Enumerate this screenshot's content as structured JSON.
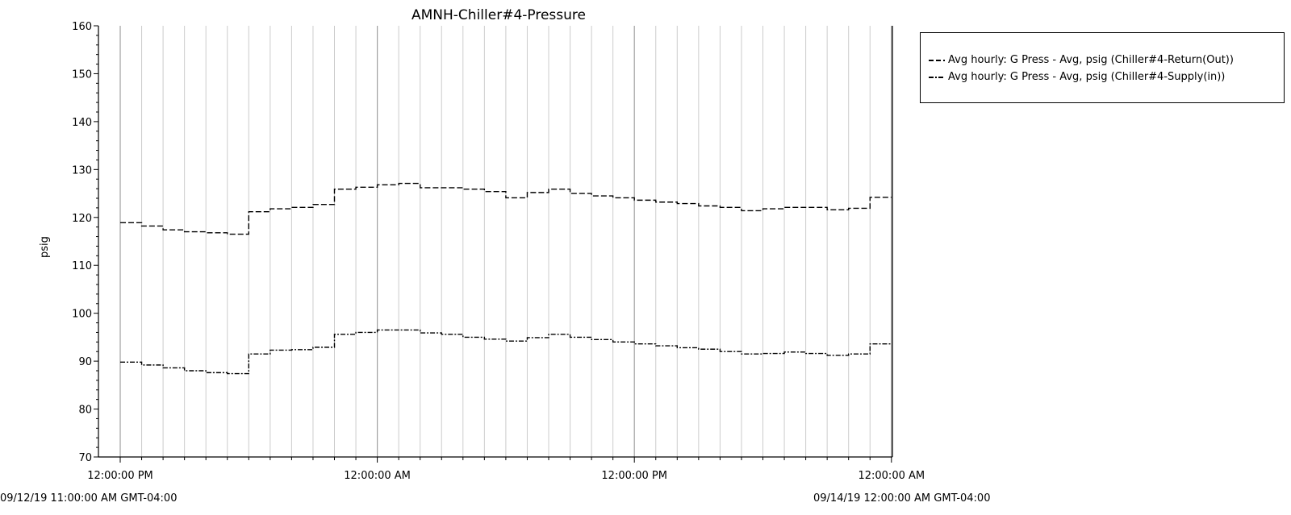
{
  "chart_data": {
    "type": "line",
    "title": "AMNH-Chiller#4-Pressure",
    "ylabel": "psig",
    "xlabel": "",
    "ylim": [
      70,
      160
    ],
    "y_ticks": [
      "70",
      "80",
      "90",
      "100",
      "110",
      "120",
      "130",
      "140",
      "150",
      "160"
    ],
    "x_tick_labels": [
      "12:00:00 PM",
      "12:00:00 AM",
      "12:00:00 PM",
      "12:00:00 AM"
    ],
    "range_start_label": "09/12/19 11:00:00 AM GMT-04:00",
    "range_end_label": "09/14/19 12:00:00 AM GMT-04:00",
    "grid": "vertical",
    "step": true,
    "hours": [
      "2019-09-12 12:00",
      "2019-09-12 13:00",
      "2019-09-12 14:00",
      "2019-09-12 15:00",
      "2019-09-12 16:00",
      "2019-09-12 17:00",
      "2019-09-12 18:00",
      "2019-09-12 19:00",
      "2019-09-12 20:00",
      "2019-09-12 21:00",
      "2019-09-12 22:00",
      "2019-09-12 23:00",
      "2019-09-13 00:00",
      "2019-09-13 01:00",
      "2019-09-13 02:00",
      "2019-09-13 03:00",
      "2019-09-13 04:00",
      "2019-09-13 05:00",
      "2019-09-13 06:00",
      "2019-09-13 07:00",
      "2019-09-13 08:00",
      "2019-09-13 09:00",
      "2019-09-13 10:00",
      "2019-09-13 11:00",
      "2019-09-13 12:00",
      "2019-09-13 13:00",
      "2019-09-13 14:00",
      "2019-09-13 15:00",
      "2019-09-13 16:00",
      "2019-09-13 17:00",
      "2019-09-13 18:00",
      "2019-09-13 19:00",
      "2019-09-13 20:00",
      "2019-09-13 21:00",
      "2019-09-13 22:00",
      "2019-09-13 23:00",
      "2019-09-14 00:00"
    ],
    "series": [
      {
        "name": "Avg hourly: G Press - Avg, psig (Chiller#4-Return(Out))",
        "dash": "dashed",
        "values": [
          118.9,
          118.2,
          117.4,
          117.0,
          116.8,
          116.5,
          121.2,
          121.8,
          122.1,
          122.7,
          125.9,
          126.3,
          126.8,
          127.1,
          126.2,
          126.2,
          125.9,
          125.4,
          124.1,
          125.2,
          125.9,
          125.0,
          124.5,
          124.1,
          123.6,
          123.2,
          122.9,
          122.4,
          122.1,
          121.4,
          121.8,
          122.1,
          122.1,
          121.6,
          121.9,
          124.2
        ]
      },
      {
        "name": "Avg hourly: G Press - Avg, psig (Chiller#4-Supply(in))",
        "dash": "dash-dot",
        "values": [
          89.8,
          89.2,
          88.6,
          88.0,
          87.6,
          87.4,
          91.5,
          92.3,
          92.4,
          92.9,
          95.6,
          96.0,
          96.5,
          96.5,
          95.9,
          95.6,
          95.0,
          94.6,
          94.2,
          94.9,
          95.6,
          95.0,
          94.5,
          94.0,
          93.6,
          93.2,
          92.8,
          92.5,
          92.0,
          91.5,
          91.6,
          91.9,
          91.6,
          91.2,
          91.5,
          93.6
        ]
      }
    ]
  }
}
